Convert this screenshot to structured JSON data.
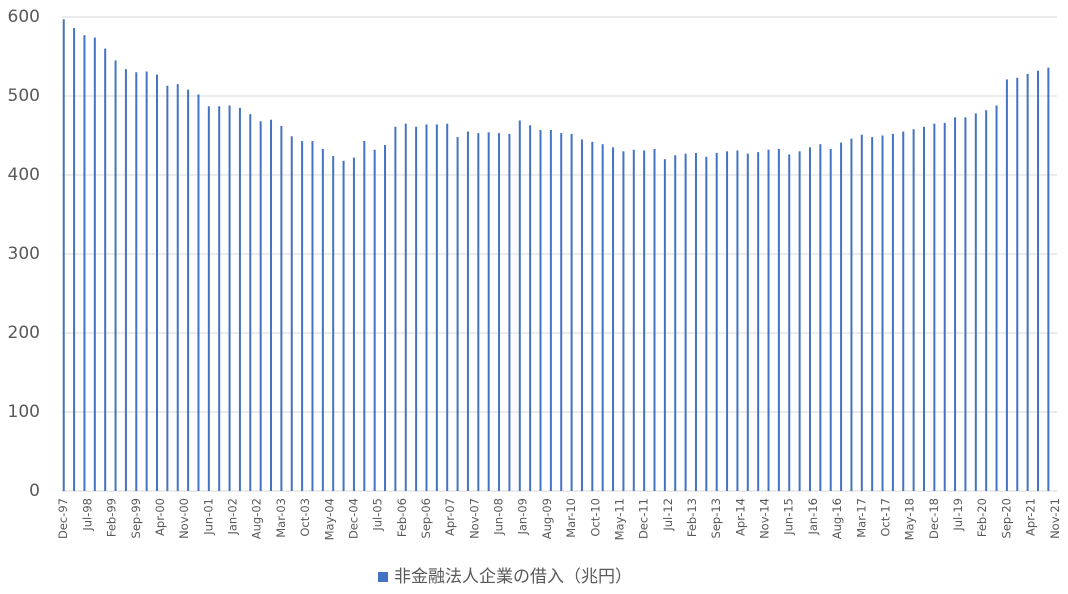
{
  "chart_data": {
    "type": "bar",
    "series": [
      {
        "name": "非金融法人企業の借入（兆円）",
        "color": "#4472c4",
        "values": [
          597,
          null,
          null,
          586,
          null,
          null,
          577,
          null,
          null,
          574,
          null,
          null,
          560,
          null,
          null,
          545,
          null,
          null,
          534,
          null,
          null,
          530,
          null,
          null,
          531,
          null,
          null,
          527,
          null,
          null,
          513,
          null,
          null,
          515,
          null,
          null,
          508,
          null,
          null,
          502,
          null,
          null,
          487,
          null,
          null,
          487,
          null,
          null,
          488,
          null,
          null,
          485,
          null,
          null,
          477,
          null,
          null,
          468,
          null,
          null,
          470,
          null,
          null,
          462,
          null,
          null,
          449,
          null,
          null,
          443,
          null,
          null,
          443,
          null,
          null,
          433,
          null,
          null,
          424,
          null,
          null,
          418,
          null,
          null,
          422,
          null,
          null,
          443,
          null,
          null,
          432,
          null,
          null,
          438,
          null,
          null,
          461,
          null,
          null,
          465,
          null,
          null,
          461,
          null,
          null,
          464,
          null,
          null,
          464,
          null,
          null,
          465,
          null,
          null,
          448,
          null,
          null,
          455,
          null,
          null,
          453,
          null,
          null,
          454,
          null,
          null,
          453,
          null,
          null,
          452,
          null,
          null,
          469,
          null,
          null,
          463,
          null,
          null,
          457,
          null,
          null,
          457,
          null,
          null,
          453,
          null,
          null,
          452,
          null,
          null,
          445,
          null,
          null,
          442,
          null,
          null,
          439,
          null,
          null,
          435,
          null,
          null,
          430,
          null,
          null,
          432,
          null,
          null,
          431,
          null,
          null,
          433,
          null,
          null,
          420,
          null,
          null,
          425,
          null,
          null,
          427,
          null,
          null,
          428,
          null,
          null,
          423,
          null,
          null,
          428,
          null,
          null,
          430,
          null,
          null,
          431,
          null,
          null,
          427,
          null,
          null,
          429,
          null,
          null,
          432,
          null,
          null,
          433,
          null,
          null,
          426,
          null,
          null,
          430,
          null,
          null,
          435,
          null,
          null,
          439,
          null,
          null,
          433,
          null,
          null,
          441,
          null,
          null,
          446,
          null,
          null,
          451,
          null,
          null,
          448,
          null,
          null,
          450,
          null,
          null,
          452,
          null,
          null,
          455,
          null,
          null,
          458,
          null,
          null,
          461,
          null,
          null,
          465,
          null,
          null,
          466,
          null,
          null,
          473,
          null,
          null,
          473,
          null,
          null,
          478,
          null,
          null,
          482,
          null,
          null,
          488,
          null,
          null,
          521,
          null,
          null,
          523,
          null,
          null,
          528,
          null,
          null,
          532,
          null,
          null,
          536,
          null,
          null
        ]
      }
    ],
    "categories": [
      "Dec-97",
      null,
      null,
      null,
      null,
      null,
      null,
      "Jul-98",
      null,
      null,
      null,
      null,
      null,
      null,
      "Feb-99",
      null,
      null,
      null,
      null,
      null,
      null,
      "Sep-99",
      null,
      null,
      null,
      null,
      null,
      null,
      "Apr-00",
      null,
      null,
      null,
      null,
      null,
      null,
      "Nov-00",
      null,
      null,
      null,
      null,
      null,
      null,
      "Jun-01",
      null,
      null,
      null,
      null,
      null,
      null,
      "Jan-02",
      null,
      null,
      null,
      null,
      null,
      null,
      "Aug-02",
      null,
      null,
      null,
      null,
      null,
      null,
      "Mar-03",
      null,
      null,
      null,
      null,
      null,
      null,
      "Oct-03",
      null,
      null,
      null,
      null,
      null,
      null,
      "May-04",
      null,
      null,
      null,
      null,
      null,
      null,
      "Dec-04",
      null,
      null,
      null,
      null,
      null,
      null,
      "Jul-05",
      null,
      null,
      null,
      null,
      null,
      null,
      "Feb-06",
      null,
      null,
      null,
      null,
      null,
      null,
      "Sep-06",
      null,
      null,
      null,
      null,
      null,
      null,
      "Apr-07",
      null,
      null,
      null,
      null,
      null,
      null,
      "Nov-07",
      null,
      null,
      null,
      null,
      null,
      null,
      "Jun-08",
      null,
      null,
      null,
      null,
      null,
      null,
      "Jan-09",
      null,
      null,
      null,
      null,
      null,
      null,
      "Aug-09",
      null,
      null,
      null,
      null,
      null,
      null,
      "Mar-10",
      null,
      null,
      null,
      null,
      null,
      null,
      "Oct-10",
      null,
      null,
      null,
      null,
      null,
      null,
      "May-11",
      null,
      null,
      null,
      null,
      null,
      null,
      "Dec-11",
      null,
      null,
      null,
      null,
      null,
      null,
      "Jul-12",
      null,
      null,
      null,
      null,
      null,
      null,
      "Feb-13",
      null,
      null,
      null,
      null,
      null,
      null,
      "Sep-13",
      null,
      null,
      null,
      null,
      null,
      null,
      "Apr-14",
      null,
      null,
      null,
      null,
      null,
      null,
      "Nov-14",
      null,
      null,
      null,
      null,
      null,
      null,
      "Jun-15",
      null,
      null,
      null,
      null,
      null,
      null,
      "Jan-16",
      null,
      null,
      null,
      null,
      null,
      null,
      "Aug-16",
      null,
      null,
      null,
      null,
      null,
      null,
      "Mar-17",
      null,
      null,
      null,
      null,
      null,
      null,
      "Oct-17",
      null,
      null,
      null,
      null,
      null,
      null,
      "May-18",
      null,
      null,
      null,
      null,
      null,
      null,
      "Dec-18",
      null,
      null,
      null,
      null,
      null,
      null,
      "Jul-19",
      null,
      null,
      null,
      null,
      null,
      null,
      "Feb-20",
      null,
      null,
      null,
      null,
      null,
      null,
      "Sep-20",
      null,
      null,
      null,
      null,
      null,
      null,
      "Apr-21",
      null,
      null,
      null,
      null,
      null,
      null,
      "Nov-21"
    ],
    "ylim": [
      0,
      600
    ],
    "yticks": [
      0,
      100,
      200,
      300,
      400,
      500,
      600
    ],
    "grid": true,
    "legend": "bottom"
  }
}
